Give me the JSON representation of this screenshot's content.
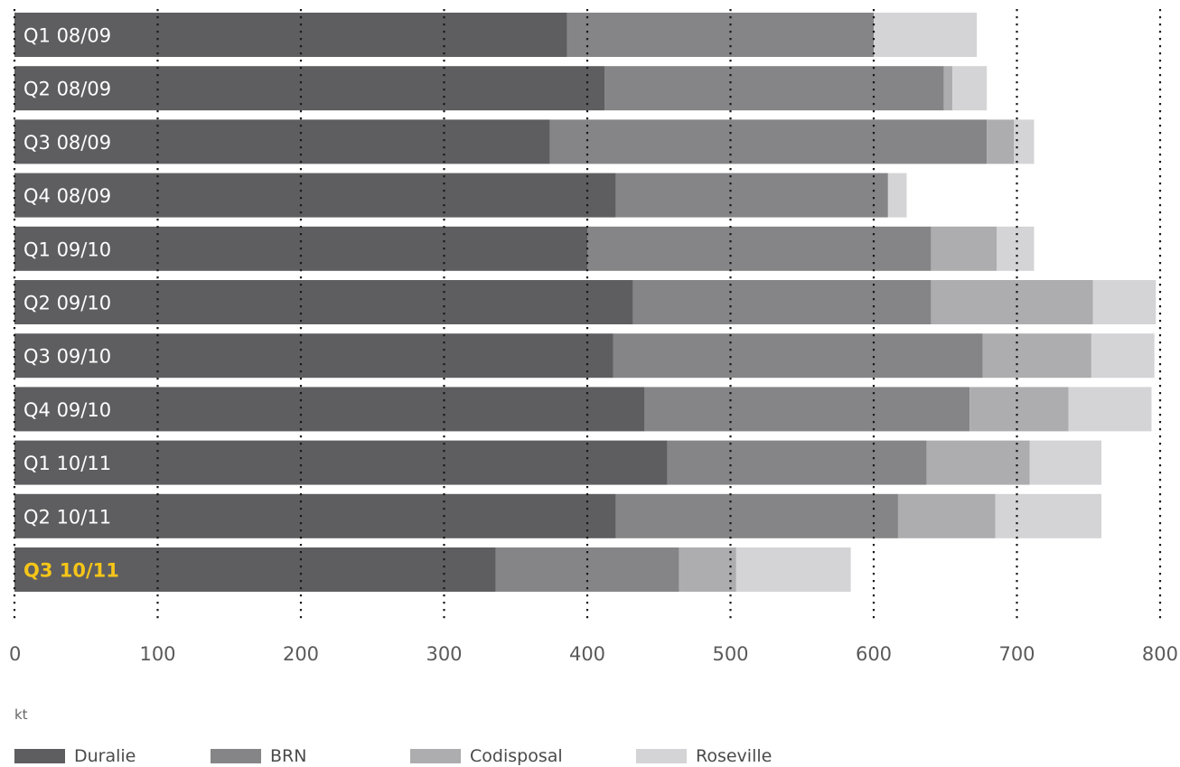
{
  "chart_data": {
    "type": "bar",
    "orientation": "horizontal",
    "stacked": true,
    "categories": [
      "Q1 08/09",
      "Q2 08/09",
      "Q3 08/09",
      "Q4 08/09",
      "Q1 09/10",
      "Q2 09/10",
      "Q3 09/10",
      "Q4 09/10",
      "Q1 10/11",
      "Q2 10/11",
      "Q3 10/11"
    ],
    "highlighted_category": "Q3 10/11",
    "series": [
      {
        "name": "Duralie",
        "color": "#5e5e60",
        "values": [
          386,
          412,
          374,
          420,
          400,
          432,
          418,
          440,
          456,
          420,
          336
        ]
      },
      {
        "name": "BRN",
        "color": "#858587",
        "values": [
          214,
          237,
          305,
          190,
          240,
          208,
          258,
          227,
          181,
          197,
          128
        ]
      },
      {
        "name": "Codisposal",
        "color": "#adadaf",
        "values": [
          0,
          6,
          19,
          0,
          46,
          113,
          76,
          69,
          72,
          68,
          40
        ]
      },
      {
        "name": "Roseville",
        "color": "#d4d4d6",
        "values": [
          72,
          24,
          14,
          13,
          26,
          44,
          44,
          58,
          50,
          74,
          80
        ]
      }
    ],
    "x_ticks": [
      "0",
      "100",
      "200",
      "300",
      "400",
      "500",
      "600",
      "700",
      "800"
    ],
    "xlim": [
      0,
      800
    ],
    "xlabel": "kt",
    "grid": "vertical dotted",
    "legend_position": "bottom",
    "highlight_color": "#f5c518"
  }
}
